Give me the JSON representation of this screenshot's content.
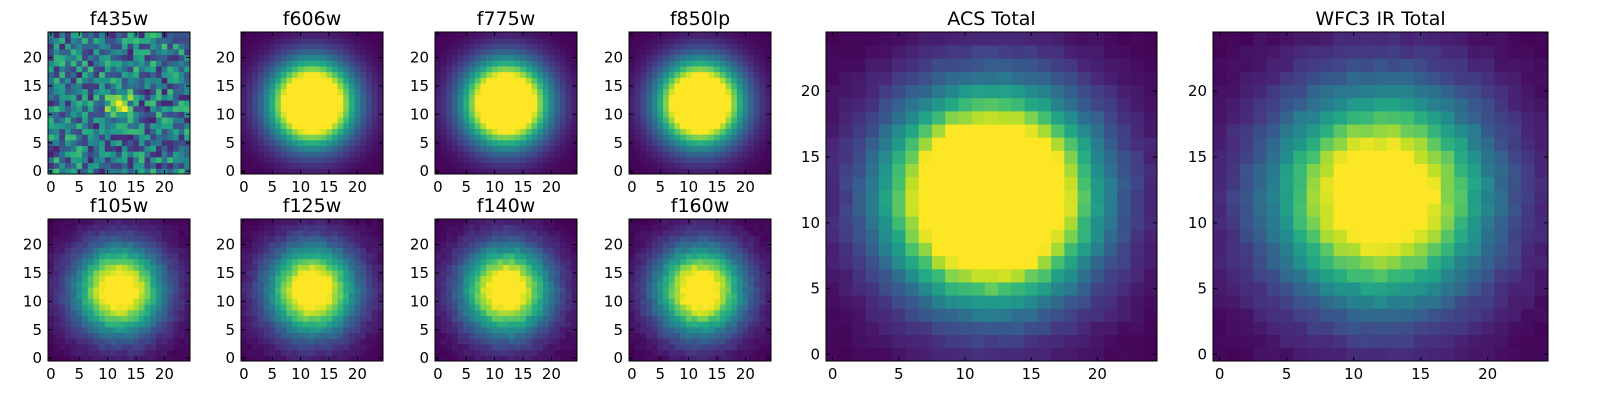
{
  "chart_data": {
    "type": "heatmap",
    "colormap": "viridis",
    "colormap_stops": [
      "#440154",
      "#482475",
      "#414487",
      "#355f8d",
      "#2a788e",
      "#21918c",
      "#22a884",
      "#44bf70",
      "#7ad151",
      "#bddf26",
      "#fde725"
    ],
    "grid_size": 25,
    "x_range": [
      0,
      24
    ],
    "y_range": [
      0,
      24
    ],
    "origin": "lower",
    "panels": [
      {
        "title": "f435w",
        "xticks": [
          0,
          5,
          10,
          15,
          20
        ],
        "yticks": [
          0,
          5,
          10,
          15,
          20
        ],
        "center": [
          12,
          12
        ],
        "sigma": 1.3,
        "peak": 1.0,
        "background": 0.45,
        "noise": 0.35,
        "clip": 0.85
      },
      {
        "title": "f606w",
        "xticks": [
          0,
          5,
          10,
          15,
          20
        ],
        "yticks": [
          0,
          5,
          10,
          15,
          20
        ],
        "center": [
          12,
          12
        ],
        "sigma": 5.0,
        "peak": 1.0,
        "background": 0.0,
        "noise": 0.0,
        "clip": 0.6
      },
      {
        "title": "f775w",
        "xticks": [
          0,
          5,
          10,
          15,
          20
        ],
        "yticks": [
          0,
          5,
          10,
          15,
          20
        ],
        "center": [
          12,
          12
        ],
        "sigma": 5.0,
        "peak": 1.0,
        "background": 0.0,
        "noise": 0.0,
        "clip": 0.6
      },
      {
        "title": "f850lp",
        "xticks": [
          0,
          5,
          10,
          15,
          20
        ],
        "yticks": [
          0,
          5,
          10,
          15,
          20
        ],
        "center": [
          12,
          12
        ],
        "sigma": 5.0,
        "peak": 1.0,
        "background": 0.0,
        "noise": 0.0,
        "clip": 0.6
      },
      {
        "title": "f105w",
        "xticks": [
          0,
          5,
          10,
          15,
          20
        ],
        "yticks": [
          0,
          5,
          10,
          15,
          20
        ],
        "center": [
          12,
          12
        ],
        "sigma": 5.4,
        "peak": 1.0,
        "background": 0.0,
        "noise": 0.04,
        "clip": 0.85
      },
      {
        "title": "f125w",
        "xticks": [
          0,
          5,
          10,
          15,
          20
        ],
        "yticks": [
          0,
          5,
          10,
          15,
          20
        ],
        "center": [
          12,
          12
        ],
        "sigma": 5.4,
        "peak": 1.0,
        "background": 0.0,
        "noise": 0.04,
        "clip": 0.85
      },
      {
        "title": "f140w",
        "xticks": [
          0,
          5,
          10,
          15,
          20
        ],
        "yticks": [
          0,
          5,
          10,
          15,
          20
        ],
        "center": [
          12,
          12
        ],
        "sigma": 5.4,
        "peak": 1.0,
        "background": 0.0,
        "noise": 0.04,
        "clip": 0.85
      },
      {
        "title": "f160w",
        "xticks": [
          0,
          5,
          10,
          15,
          20
        ],
        "yticks": [
          0,
          5,
          10,
          15,
          20
        ],
        "center": [
          12,
          12
        ],
        "sigma": 5.4,
        "peak": 1.0,
        "background": 0.0,
        "noise": 0.04,
        "clip": 0.85
      },
      {
        "title": "ACS Total",
        "xticks": [
          0,
          5,
          10,
          15,
          20
        ],
        "yticks": [
          0,
          5,
          10,
          15,
          20
        ],
        "center": [
          12,
          12
        ],
        "sigma": 5.2,
        "peak": 1.0,
        "background": 0.0,
        "noise": 0.02,
        "clip": 0.55
      },
      {
        "title": "WFC3 IR Total",
        "xticks": [
          0,
          5,
          10,
          15,
          20
        ],
        "yticks": [
          0,
          5,
          10,
          15,
          20
        ],
        "center": [
          12,
          12
        ],
        "sigma": 5.6,
        "peak": 1.0,
        "background": 0.0,
        "noise": 0.03,
        "clip": 0.8
      }
    ]
  }
}
